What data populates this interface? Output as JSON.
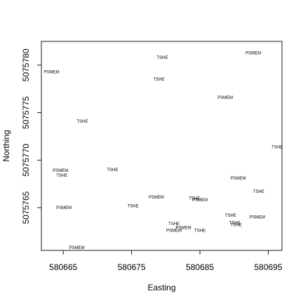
{
  "chart_data": {
    "type": "scatter",
    "xlabel": "Easting",
    "ylabel": "Northing",
    "xlim": [
      580661.8,
      580697.0
    ],
    "ylim": [
      5075760.5,
      5075782.5
    ],
    "xticks": [
      580665,
      580675,
      580685,
      580695
    ],
    "yticks": [
      5075765,
      5075770,
      5075775,
      5075780
    ],
    "points": [
      {
        "x": 580663.3,
        "y": 5075779.3,
        "label": "PSMEM"
      },
      {
        "x": 580679.5,
        "y": 5075780.8,
        "label": "TSHE"
      },
      {
        "x": 580692.8,
        "y": 5075781.3,
        "label": "PSMEM"
      },
      {
        "x": 580679.0,
        "y": 5075778.5,
        "label": "TSHE"
      },
      {
        "x": 580688.7,
        "y": 5075776.6,
        "label": "PSMEM"
      },
      {
        "x": 580667.8,
        "y": 5075774.1,
        "label": "TSHE"
      },
      {
        "x": 580696.3,
        "y": 5075771.4,
        "label": "TSHE"
      },
      {
        "x": 580664.6,
        "y": 5075768.9,
        "label": "PSMEM"
      },
      {
        "x": 580664.8,
        "y": 5075768.4,
        "label": "TSHE"
      },
      {
        "x": 580672.2,
        "y": 5075769.0,
        "label": "TSHE"
      },
      {
        "x": 580690.6,
        "y": 5075768.1,
        "label": "PSMEM"
      },
      {
        "x": 580693.6,
        "y": 5075766.7,
        "label": "TSHE"
      },
      {
        "x": 580678.6,
        "y": 5075766.1,
        "label": "PSMEM"
      },
      {
        "x": 580684.2,
        "y": 5075766.0,
        "label": "TSHE"
      },
      {
        "x": 580685.0,
        "y": 5075765.8,
        "label": "PSMEM"
      },
      {
        "x": 580675.2,
        "y": 5075765.2,
        "label": "TSHE"
      },
      {
        "x": 580665.1,
        "y": 5075765.0,
        "label": "PSMEM"
      },
      {
        "x": 580689.5,
        "y": 5075764.2,
        "label": "TSHE"
      },
      {
        "x": 580693.4,
        "y": 5075764.0,
        "label": "PSMEM"
      },
      {
        "x": 580690.1,
        "y": 5075763.4,
        "label": "TSHE"
      },
      {
        "x": 580690.3,
        "y": 5075763.2,
        "label": "TSHE"
      },
      {
        "x": 580681.2,
        "y": 5075763.3,
        "label": "TSHE"
      },
      {
        "x": 580682.6,
        "y": 5075762.9,
        "label": "PSMEM"
      },
      {
        "x": 580681.2,
        "y": 5075762.6,
        "label": "PSMEM"
      },
      {
        "x": 580685.0,
        "y": 5075762.6,
        "label": "TSHE"
      },
      {
        "x": 580667.0,
        "y": 5075760.8,
        "label": "PSMEM"
      }
    ]
  }
}
